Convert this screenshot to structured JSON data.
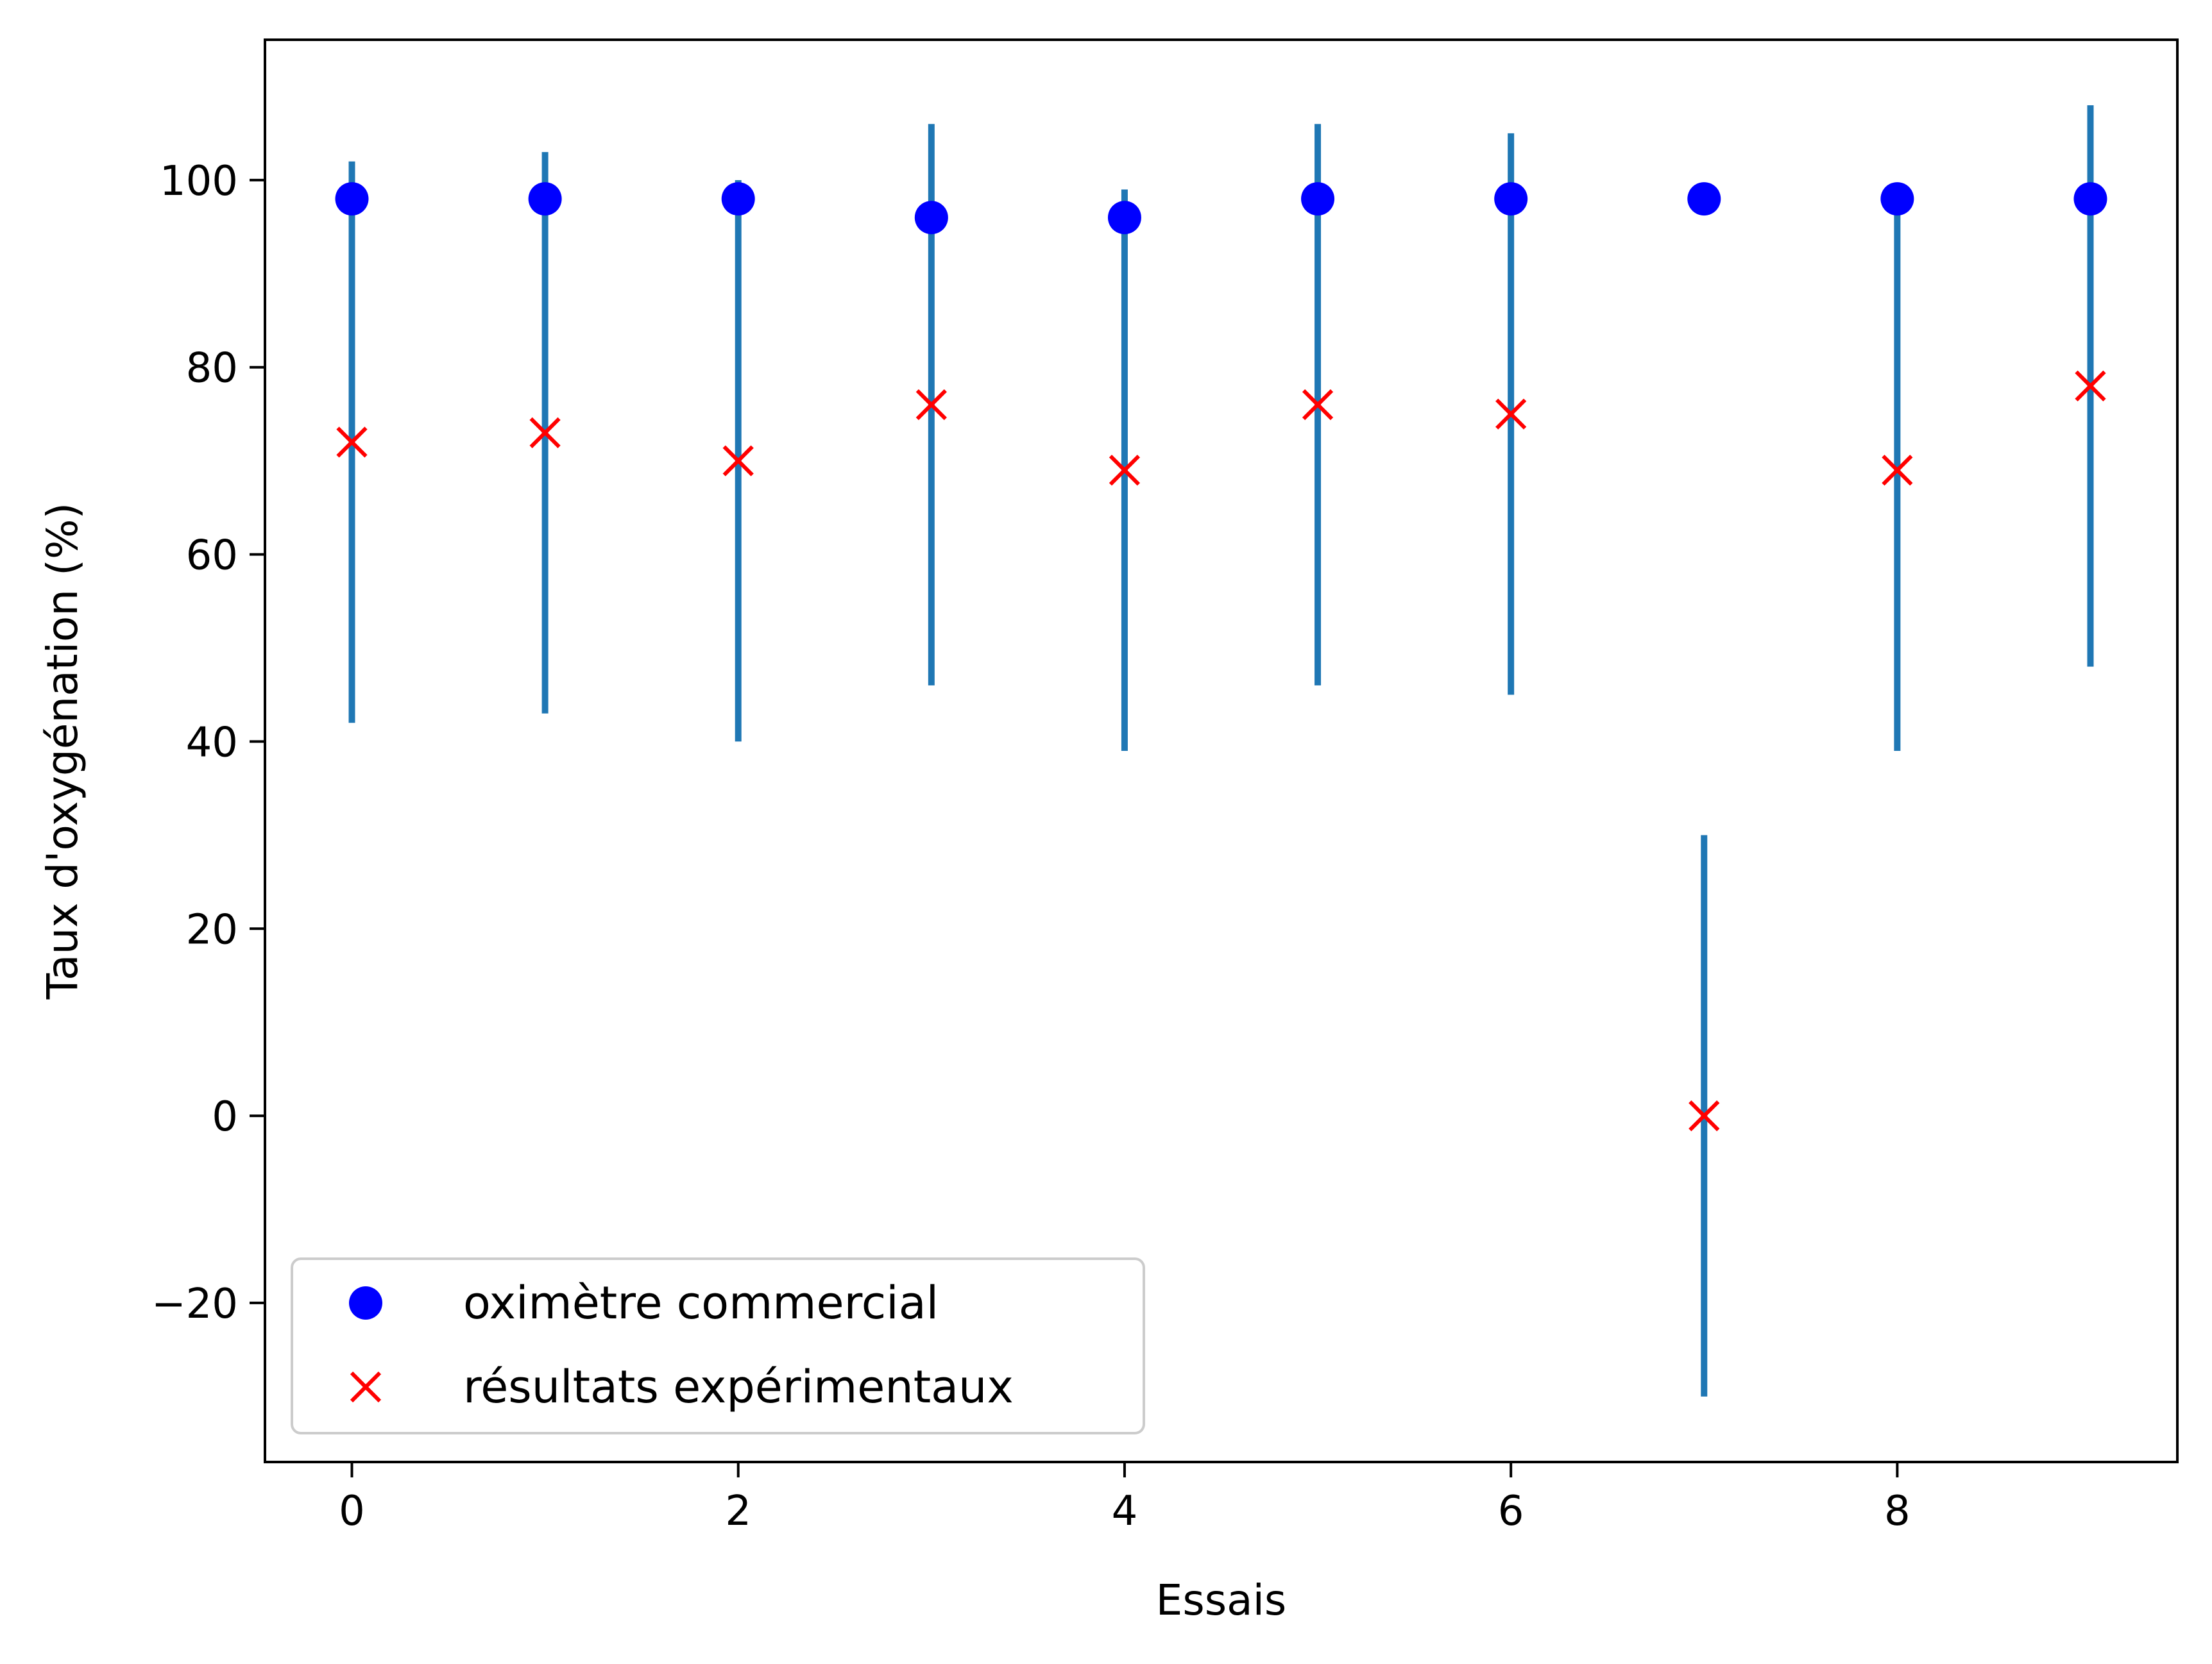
{
  "chart_data": {
    "type": "scatter",
    "title": "",
    "xlabel": "Essais",
    "ylabel": "Taux d'oxygénation (%)",
    "xlim": [
      -0.45,
      9.45
    ],
    "ylim": [
      -37,
      115
    ],
    "xticks": [
      0,
      2,
      4,
      6,
      8
    ],
    "xtick_labels": [
      "0",
      "2",
      "4",
      "6",
      "8"
    ],
    "yticks": [
      -20,
      0,
      20,
      40,
      60,
      80,
      100
    ],
    "ytick_labels": [
      "−20",
      "0",
      "20",
      "40",
      "60",
      "80",
      "100"
    ],
    "grid": false,
    "legend_position": "lower-left",
    "x": [
      0,
      1,
      2,
      3,
      4,
      5,
      6,
      7,
      8,
      9
    ],
    "series": [
      {
        "name": "oximètre commercial",
        "marker": "circle",
        "color": "#0000ff",
        "values": [
          98,
          98,
          98,
          96,
          96,
          98,
          98,
          98,
          98,
          98
        ]
      },
      {
        "name": "résultats expérimentaux",
        "marker": "x",
        "color": "#ff0000",
        "values": [
          72,
          73,
          70,
          76,
          69,
          76,
          75,
          0,
          69,
          78
        ],
        "error": [
          30,
          30,
          30,
          30,
          30,
          30,
          30,
          30,
          30,
          30
        ],
        "error_color": "#1f77b4"
      }
    ]
  }
}
